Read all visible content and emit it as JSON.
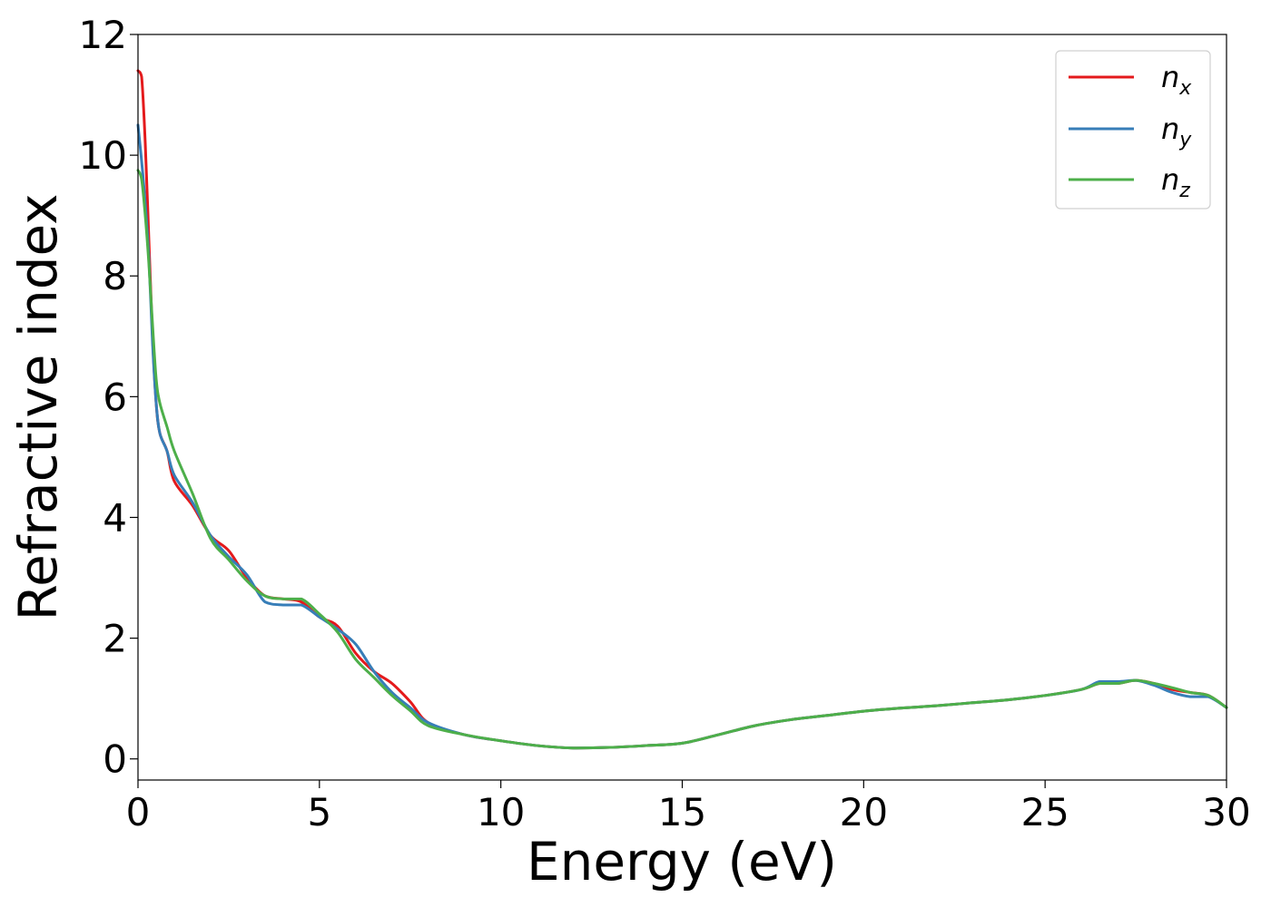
{
  "chart_data": {
    "type": "line",
    "title": "",
    "xlabel": "Energy (eV)",
    "ylabel": "Refractive index",
    "xlim": [
      0,
      30
    ],
    "ylim": [
      -0.35,
      12
    ],
    "xticks": [
      0,
      5,
      10,
      15,
      20,
      25,
      30
    ],
    "yticks": [
      0,
      2,
      4,
      6,
      8,
      10,
      12
    ],
    "grid": false,
    "legend_position": "top-right",
    "series": [
      {
        "name": "n",
        "subscript": "x",
        "color": "#e41a1c",
        "x": [
          0,
          0.1,
          0.2,
          0.3,
          0.4,
          0.5,
          0.6,
          0.8,
          1.0,
          1.5,
          2.0,
          2.5,
          3.0,
          3.5,
          4.0,
          4.5,
          5.0,
          5.5,
          6.0,
          6.5,
          7.0,
          7.5,
          8.0,
          9.0,
          10.0,
          11.0,
          12.0,
          13.0,
          14.0,
          15.0,
          16.0,
          17.0,
          18.0,
          19.0,
          20.0,
          21.0,
          22.0,
          23.0,
          24.0,
          25.0,
          26.0,
          26.5,
          27.0,
          27.5,
          28.0,
          28.5,
          29.0,
          29.5,
          30.0
        ],
        "y": [
          11.4,
          11.3,
          10.2,
          8.6,
          7.0,
          5.9,
          5.4,
          5.1,
          4.6,
          4.2,
          3.7,
          3.45,
          3.0,
          2.7,
          2.65,
          2.6,
          2.35,
          2.2,
          1.75,
          1.45,
          1.25,
          0.95,
          0.6,
          0.4,
          0.3,
          0.22,
          0.18,
          0.19,
          0.22,
          0.26,
          0.4,
          0.55,
          0.65,
          0.72,
          0.79,
          0.84,
          0.88,
          0.93,
          0.98,
          1.05,
          1.15,
          1.25,
          1.25,
          1.3,
          1.25,
          1.15,
          1.1,
          1.05,
          0.85
        ]
      },
      {
        "name": "n",
        "subscript": "y",
        "color": "#377eb8",
        "x": [
          0,
          0.1,
          0.2,
          0.3,
          0.4,
          0.5,
          0.6,
          0.8,
          1.0,
          1.5,
          2.0,
          2.5,
          3.0,
          3.5,
          4.0,
          4.5,
          5.0,
          5.5,
          6.0,
          6.5,
          7.0,
          7.5,
          8.0,
          9.0,
          10.0,
          11.0,
          12.0,
          13.0,
          14.0,
          15.0,
          16.0,
          17.0,
          18.0,
          19.0,
          20.0,
          21.0,
          22.0,
          23.0,
          24.0,
          25.0,
          26.0,
          26.5,
          27.0,
          27.5,
          28.0,
          28.5,
          29.0,
          29.5,
          30.0
        ],
        "y": [
          10.5,
          9.9,
          9.2,
          8.3,
          6.9,
          5.9,
          5.4,
          5.1,
          4.7,
          4.25,
          3.7,
          3.35,
          3.05,
          2.6,
          2.55,
          2.55,
          2.35,
          2.15,
          1.9,
          1.45,
          1.1,
          0.85,
          0.6,
          0.4,
          0.3,
          0.22,
          0.18,
          0.19,
          0.22,
          0.26,
          0.4,
          0.55,
          0.65,
          0.72,
          0.79,
          0.84,
          0.88,
          0.93,
          0.98,
          1.05,
          1.15,
          1.28,
          1.28,
          1.3,
          1.22,
          1.1,
          1.03,
          1.03,
          0.85
        ]
      },
      {
        "name": "n",
        "subscript": "z",
        "color": "#4daf4a",
        "x": [
          0,
          0.1,
          0.2,
          0.3,
          0.4,
          0.5,
          0.6,
          0.8,
          1.0,
          1.5,
          2.0,
          2.5,
          3.0,
          3.5,
          4.0,
          4.5,
          5.0,
          5.5,
          6.0,
          6.5,
          7.0,
          7.5,
          8.0,
          9.0,
          10.0,
          11.0,
          12.0,
          13.0,
          14.0,
          15.0,
          16.0,
          17.0,
          18.0,
          19.0,
          20.0,
          21.0,
          22.0,
          23.0,
          24.0,
          25.0,
          26.0,
          26.5,
          27.0,
          27.5,
          28.0,
          28.5,
          29.0,
          29.5,
          30.0
        ],
        "y": [
          9.75,
          9.6,
          9.0,
          8.2,
          7.2,
          6.3,
          5.9,
          5.5,
          5.1,
          4.4,
          3.65,
          3.3,
          2.95,
          2.7,
          2.65,
          2.65,
          2.4,
          2.1,
          1.65,
          1.35,
          1.05,
          0.8,
          0.55,
          0.4,
          0.3,
          0.22,
          0.18,
          0.19,
          0.22,
          0.26,
          0.4,
          0.55,
          0.65,
          0.72,
          0.79,
          0.84,
          0.88,
          0.93,
          0.98,
          1.05,
          1.15,
          1.25,
          1.25,
          1.3,
          1.25,
          1.18,
          1.1,
          1.05,
          0.85
        ]
      }
    ]
  }
}
